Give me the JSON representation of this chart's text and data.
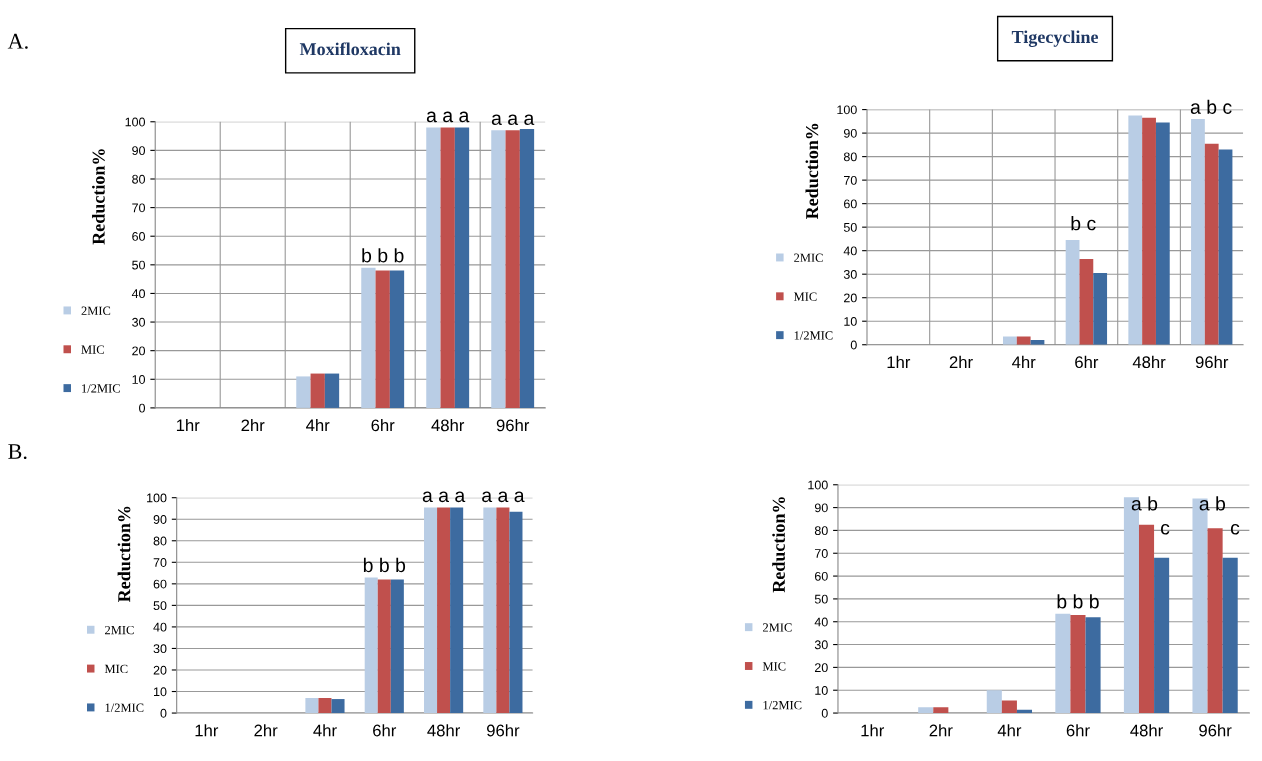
{
  "chart_data": [
    {
      "type": "bar",
      "title": "Moxifloxacin",
      "ylabel": "Reduction%",
      "annotations": [
        "A.",
        {
          "text": "b b b",
          "x": "6hr",
          "y": 49
        },
        {
          "text": "a a a",
          "x": "48hr",
          "y": 98
        },
        {
          "text": "a a a",
          "x": "96hr",
          "y": 97
        }
      ],
      "categories": [
        "1hr",
        "2hr",
        "4hr",
        "6hr",
        "48hr",
        "96hr"
      ],
      "series": [
        {
          "name": "2MIC",
          "color": "#b9cde5",
          "values": [
            0,
            0,
            11,
            49,
            98,
            97
          ]
        },
        {
          "name": "MIC",
          "color": "#c0504d",
          "values": [
            0,
            0,
            12,
            48,
            98,
            97
          ]
        },
        {
          "name": "1/2MIC",
          "color": "#3d6ba0",
          "values": [
            0,
            0,
            12,
            48,
            98,
            97.5
          ]
        }
      ],
      "ylim": [
        0,
        100
      ],
      "yticks": [
        0,
        10,
        20,
        30,
        40,
        50,
        60,
        70,
        80,
        90,
        100
      ],
      "grid": true,
      "legend": "left"
    },
    {
      "type": "bar",
      "title": "Tigecycline",
      "ylabel": "Reduction%",
      "annotations": [
        "b c",
        "a b c"
      ],
      "categories": [
        "1hr",
        "2hr",
        "4hr",
        "6hr",
        "48hr",
        "96hr"
      ],
      "series": [
        {
          "name": "2MIC",
          "color": "#b9cde5",
          "values": [
            0,
            0,
            3.5,
            44.5,
            97.5,
            96
          ]
        },
        {
          "name": "MIC",
          "color": "#c0504d",
          "values": [
            0,
            0,
            3.5,
            36.5,
            96.5,
            85.5
          ]
        },
        {
          "name": "1/2MIC",
          "color": "#3d6ba0",
          "values": [
            0,
            0,
            2,
            30.5,
            94.5,
            83
          ]
        }
      ],
      "ylim": [
        0,
        100
      ],
      "yticks": [
        0,
        10,
        20,
        30,
        40,
        50,
        60,
        70,
        80,
        90,
        100
      ],
      "grid": true,
      "legend": "left"
    },
    {
      "type": "bar",
      "ylabel": "Reduction%",
      "annotations": [
        "B.",
        {
          "text": "b b b",
          "x": "6hr",
          "y": 63
        },
        {
          "text": "a a a",
          "x": "48hr",
          "y": 95.5
        },
        {
          "text": "a a a",
          "x": "96hr",
          "y": 95.5
        }
      ],
      "categories": [
        "1hr",
        "2hr",
        "4hr",
        "6hr",
        "48hr",
        "96hr"
      ],
      "series": [
        {
          "name": "2MIC",
          "color": "#b9cde5",
          "values": [
            0,
            0,
            7,
            63,
            95.5,
            95.5
          ]
        },
        {
          "name": "MIC",
          "color": "#c0504d",
          "values": [
            0,
            0,
            7,
            62,
            95.5,
            95.5
          ]
        },
        {
          "name": "1/2MIC",
          "color": "#3d6ba0",
          "values": [
            0,
            0,
            6.5,
            62,
            95.5,
            93.5
          ]
        }
      ],
      "ylim": [
        0,
        100
      ],
      "yticks": [
        0,
        10,
        20,
        30,
        40,
        50,
        60,
        70,
        80,
        90,
        100
      ],
      "grid": "y",
      "legend": "left"
    },
    {
      "type": "bar",
      "ylabel": "Reduction%",
      "annotations": [
        {
          "text": "b b b",
          "x": "6hr",
          "y": 43.5
        },
        "a b",
        "c",
        "a b",
        "c"
      ],
      "categories": [
        "1hr",
        "2hr",
        "4hr",
        "6hr",
        "48hr",
        "96hr"
      ],
      "series": [
        {
          "name": "2MIC",
          "color": "#b9cde5",
          "values": [
            0,
            2.5,
            10,
            43.5,
            94.5,
            94
          ]
        },
        {
          "name": "MIC",
          "color": "#c0504d",
          "values": [
            0,
            2.5,
            5.5,
            43,
            82.5,
            81
          ]
        },
        {
          "name": "1/2MIC",
          "color": "#3d6ba0",
          "values": [
            0,
            0,
            1.5,
            42,
            68,
            68
          ]
        }
      ],
      "ylim": [
        0,
        100
      ],
      "yticks": [
        0,
        10,
        20,
        30,
        40,
        50,
        60,
        70,
        80,
        90,
        100
      ],
      "grid": "y",
      "legend": "left"
    }
  ]
}
